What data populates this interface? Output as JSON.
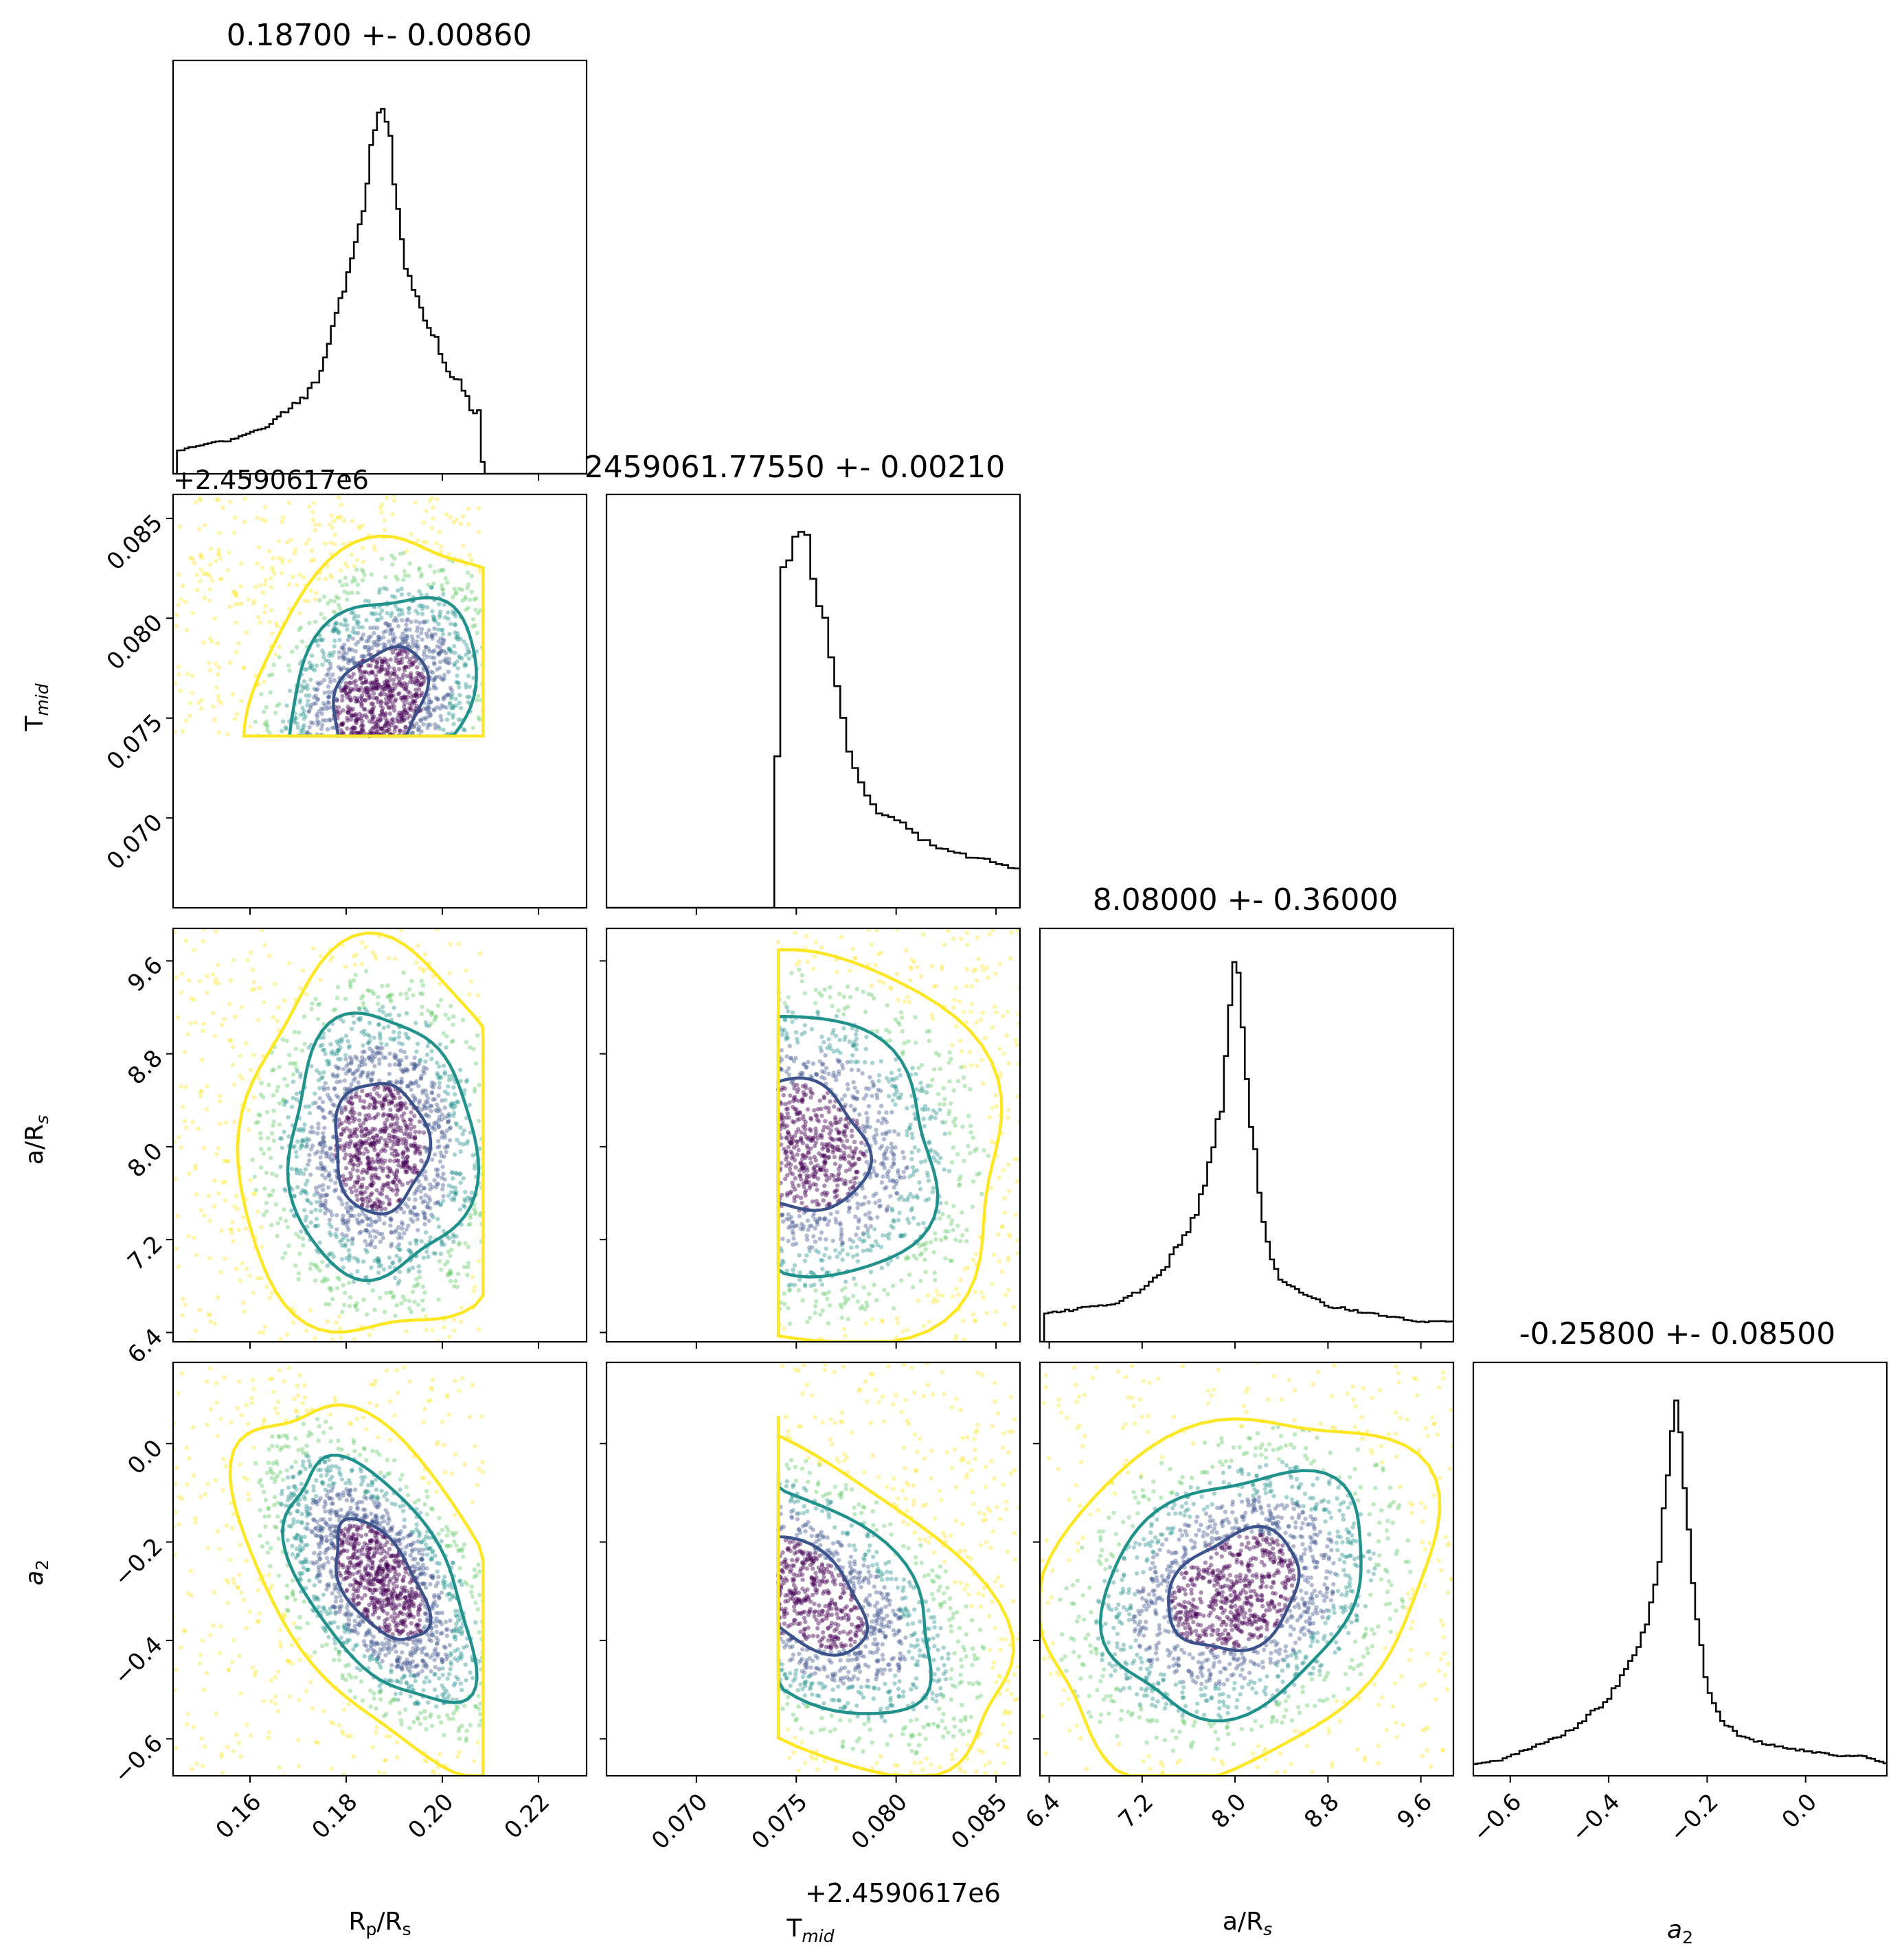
{
  "chart_data": {
    "type": "scatter",
    "subtype": "corner-plot",
    "parameters": [
      {
        "key": "rp",
        "label": "R",
        "label_sub": "p",
        "label_suffix": "/R",
        "label_suffix_sub": "s"
      },
      {
        "key": "tmid",
        "label": "T",
        "label_sub": "mid",
        "label_suffix": "",
        "label_suffix_sub": ""
      },
      {
        "key": "ars",
        "label": "a/R",
        "label_sub": "s",
        "label_suffix": "",
        "label_suffix_sub": ""
      },
      {
        "key": "a2",
        "label": "a",
        "label_sub": "2",
        "label_suffix": "",
        "label_suffix_sub": "",
        "italic": true
      }
    ],
    "titles": [
      "0.18700 +- 0.00860",
      "2459061.77550 +- 0.00210",
      "8.08000 +- 0.36000",
      "-0.25800 +- 0.08500"
    ],
    "offset_label": "+2.4590617e6",
    "ranges": [
      [
        0.144,
        0.23
      ],
      [
        0.0655,
        0.0862
      ],
      [
        6.32,
        9.88
      ],
      [
        -0.675,
        0.165
      ]
    ],
    "ticks": [
      {
        "values": [
          0.16,
          0.18,
          0.2,
          0.22
        ],
        "labels": [
          "0.16",
          "0.18",
          "0.20",
          "0.22"
        ]
      },
      {
        "values": [
          0.07,
          0.075,
          0.08,
          0.085
        ],
        "labels": [
          "0.070",
          "0.075",
          "0.080",
          "0.085"
        ]
      },
      {
        "values": [
          6.4,
          7.2,
          8.0,
          8.8,
          9.6
        ],
        "labels": [
          "6.4",
          "7.2",
          "8.0",
          "8.8",
          "9.6"
        ]
      },
      {
        "values": [
          -0.6,
          -0.4,
          -0.2,
          0.0
        ],
        "labels": [
          "−0.6",
          "−0.4",
          "−0.2",
          "0.0"
        ]
      }
    ],
    "histograms": [
      {
        "param": "rp",
        "bin_width": 0.0008,
        "x": [
          0.145,
          0.148,
          0.152,
          0.156,
          0.16,
          0.164,
          0.168,
          0.17,
          0.172,
          0.174,
          0.176,
          0.178,
          0.18,
          0.182,
          0.183,
          0.184,
          0.185,
          0.186,
          0.187,
          0.188,
          0.189,
          0.19,
          0.191,
          0.192,
          0.194,
          0.196,
          0.198,
          0.2,
          0.202,
          0.204,
          0.206,
          0.208,
          0.2085,
          0.23
        ],
        "counts": [
          0.06,
          0.07,
          0.08,
          0.09,
          0.11,
          0.13,
          0.17,
          0.19,
          0.21,
          0.25,
          0.33,
          0.42,
          0.49,
          0.6,
          0.66,
          0.74,
          0.84,
          0.94,
          1.0,
          0.98,
          0.9,
          0.78,
          0.66,
          0.57,
          0.48,
          0.43,
          0.38,
          0.3,
          0.26,
          0.24,
          0.17,
          0.16,
          0.0,
          0.0
        ]
      },
      {
        "param": "tmid",
        "bin_width": 0.0003,
        "x": [
          0.0655,
          0.074,
          0.0741,
          0.0745,
          0.075,
          0.0755,
          0.076,
          0.0765,
          0.077,
          0.0775,
          0.078,
          0.0785,
          0.079,
          0.08,
          0.081,
          0.082,
          0.083,
          0.084,
          0.085,
          0.0862
        ],
        "counts": [
          0.0,
          0.0,
          0.8,
          0.92,
          0.99,
          0.95,
          0.85,
          0.72,
          0.57,
          0.44,
          0.35,
          0.3,
          0.26,
          0.23,
          0.19,
          0.16,
          0.14,
          0.13,
          0.12,
          0.1
        ]
      },
      {
        "param": "ars",
        "bin_width": 0.036,
        "x": [
          6.35,
          6.6,
          6.8,
          7.0,
          7.2,
          7.4,
          7.5,
          7.6,
          7.7,
          7.8,
          7.9,
          7.95,
          8.0,
          8.05,
          8.1,
          8.2,
          8.3,
          8.4,
          8.6,
          8.8,
          9.0,
          9.2,
          9.4,
          9.6,
          9.88
        ],
        "counts": [
          0.07,
          0.08,
          0.09,
          0.1,
          0.13,
          0.18,
          0.24,
          0.28,
          0.35,
          0.46,
          0.62,
          0.8,
          0.95,
          0.9,
          0.65,
          0.4,
          0.21,
          0.15,
          0.12,
          0.09,
          0.08,
          0.07,
          0.06,
          0.05,
          0.05
        ]
      },
      {
        "param": "a2",
        "bin_width": 0.0085,
        "x": [
          -0.675,
          -0.62,
          -0.56,
          -0.5,
          -0.45,
          -0.4,
          -0.37,
          -0.34,
          -0.32,
          -0.3,
          -0.29,
          -0.28,
          -0.27,
          -0.26,
          -0.25,
          -0.24,
          -0.22,
          -0.2,
          -0.17,
          -0.13,
          -0.08,
          -0.03,
          0.02,
          0.07,
          0.12,
          0.165
        ],
        "counts": [
          0.03,
          0.04,
          0.07,
          0.1,
          0.14,
          0.2,
          0.26,
          0.33,
          0.41,
          0.52,
          0.64,
          0.76,
          0.88,
          0.97,
          0.85,
          0.64,
          0.4,
          0.22,
          0.14,
          0.1,
          0.08,
          0.07,
          0.06,
          0.05,
          0.05,
          0.03
        ]
      }
    ],
    "pairs": [
      {
        "x": "rp",
        "y": "tmid",
        "center": [
          0.187,
          0.0758
        ],
        "sigma": [
          0.0095,
          0.0027
        ],
        "corr": 0.3,
        "x_limits": [
          0.144,
          0.2085
        ],
        "y_limits": [
          0.0741,
          0.0862
        ]
      },
      {
        "x": "rp",
        "y": "ars",
        "center": [
          0.187,
          8.0
        ],
        "sigma": [
          0.0095,
          0.55
        ],
        "corr": 0.0,
        "x_limits": [
          0.144,
          0.2085
        ],
        "y_limits": [
          6.32,
          9.88
        ]
      },
      {
        "x": "rp",
        "y": "a2",
        "center": [
          0.187,
          -0.28
        ],
        "sigma": [
          0.0095,
          0.12
        ],
        "corr": -0.55,
        "x_limits": [
          0.144,
          0.2085
        ],
        "y_limits": [
          -0.675,
          0.165
        ]
      },
      {
        "x": "tmid",
        "y": "ars",
        "center": [
          0.075,
          8.0
        ],
        "sigma": [
          0.0035,
          0.55
        ],
        "corr": -0.1,
        "x_limits": [
          0.0741,
          0.0862
        ],
        "y_limits": [
          6.32,
          9.88
        ]
      },
      {
        "x": "tmid",
        "y": "a2",
        "center": [
          0.075,
          -0.3
        ],
        "sigma": [
          0.0035,
          0.12
        ],
        "corr": -0.55,
        "x_limits": [
          0.0741,
          0.0862
        ],
        "y_limits": [
          -0.675,
          0.165
        ]
      },
      {
        "x": "ars",
        "y": "a2",
        "center": [
          8.0,
          -0.3
        ],
        "sigma": [
          0.55,
          0.12
        ],
        "corr": 0.25,
        "x_limits": [
          6.32,
          9.88
        ],
        "y_limits": [
          -0.675,
          0.165
        ]
      }
    ],
    "contour_levels": [
      {
        "sigma_scale": 1.0,
        "color": "#3b528b"
      },
      {
        "sigma_scale": 2.0,
        "color": "#21918c"
      },
      {
        "sigma_scale": 3.0,
        "color": "#fde725"
      }
    ],
    "point_colors": [
      "#440154",
      "#3b528b",
      "#21918c",
      "#5ec962",
      "#fde725"
    ],
    "histogram_color": "#000000",
    "grid": false,
    "legend": "none"
  }
}
